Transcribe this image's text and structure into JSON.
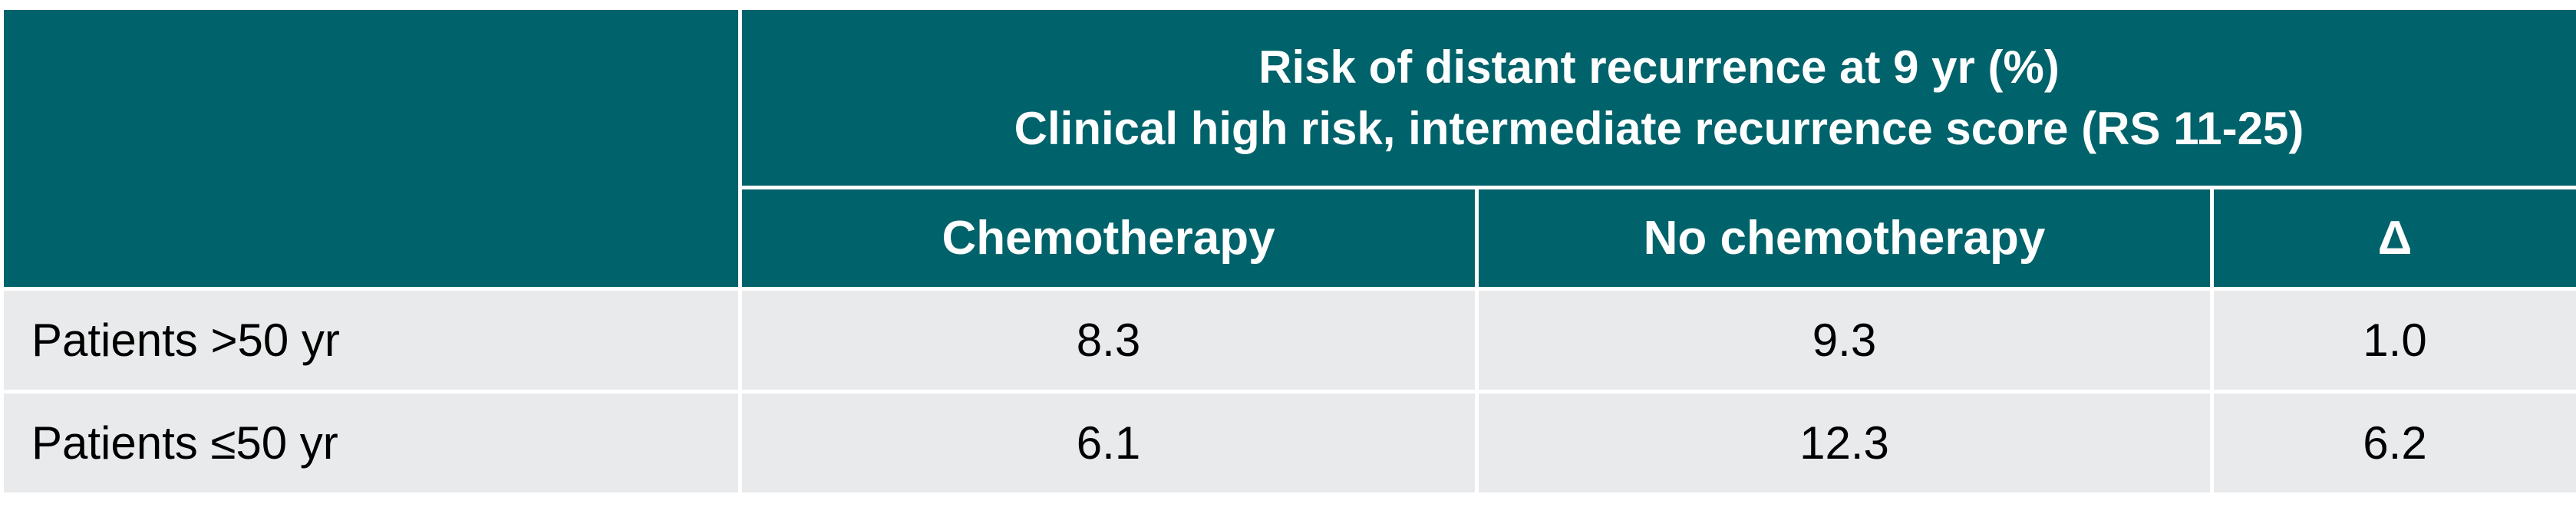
{
  "table": {
    "title_line1": "Risk of distant recurrence at 9 yr (%)",
    "title_line2": "Clinical high risk, intermediate recurrence score (RS 11-25)",
    "columns": [
      "Chemotherapy",
      "No chemotherapy",
      "Δ"
    ],
    "rows": [
      {
        "label": "Patients >50 yr",
        "values": [
          "8.3",
          "9.3",
          "1.0"
        ]
      },
      {
        "label": "Patients ≤50 yr",
        "values": [
          "6.1",
          "12.3",
          "6.2"
        ]
      }
    ],
    "colors": {
      "header_bg": "#00626a",
      "header_text": "#ffffff",
      "body_bg": "#e8eaeb"
    }
  }
}
